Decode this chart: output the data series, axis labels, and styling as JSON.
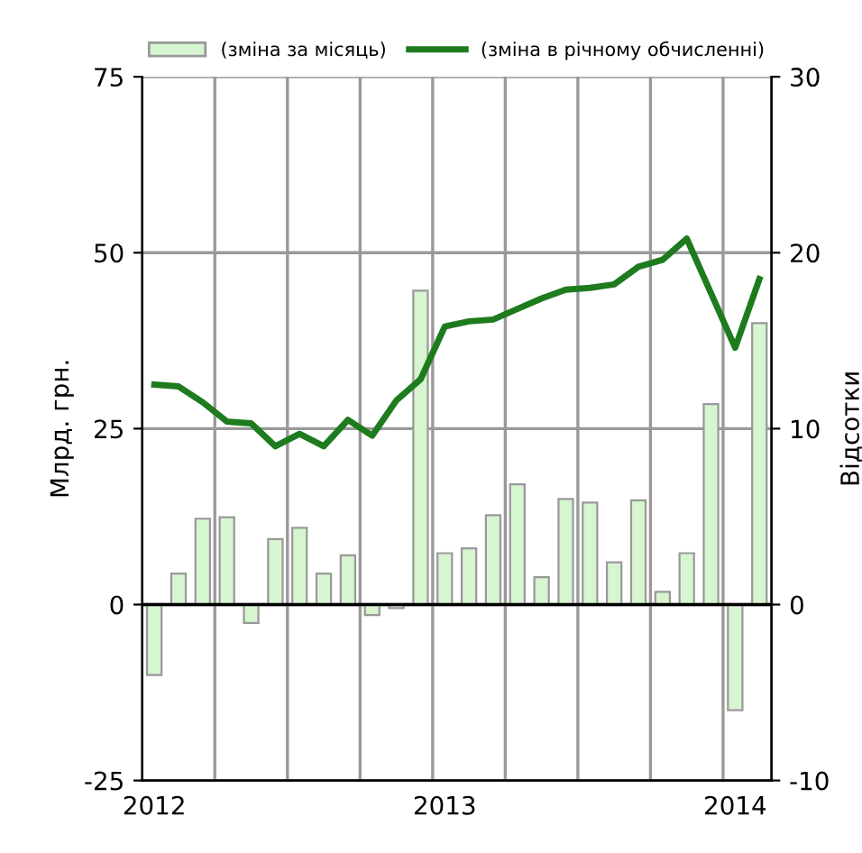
{
  "chart_data": {
    "type": "bar",
    "ylabel": "Млрд. грн.",
    "y2label": "Відсотки",
    "categories": [
      "2012",
      null,
      null,
      null,
      null,
      null,
      null,
      null,
      null,
      null,
      null,
      null,
      "2013",
      null,
      null,
      null,
      null,
      null,
      null,
      null,
      null,
      null,
      null,
      null,
      "2014",
      null
    ],
    "series": [
      {
        "name": "(зміна за місяць)",
        "color": "#d6f5d0",
        "values": [
          -10,
          4.4,
          12.2,
          12.4,
          -2.6,
          9.3,
          10.9,
          4.4,
          7.0,
          -1.5,
          -0.5,
          44.6,
          7.3,
          8.0,
          12.7,
          17.1,
          3.9,
          15.0,
          14.5,
          6.0,
          14.8,
          1.8,
          7.3,
          28.5,
          -15,
          40
        ]
      },
      {
        "name": "(зміна в річному обчисленні)",
        "type": "line",
        "axis": "y2",
        "color": "#1e7b1e",
        "values": [
          12.5,
          12.4,
          11.5,
          10.4,
          10.3,
          9.0,
          9.7,
          9.0,
          10.5,
          9.6,
          11.6,
          12.8,
          15.8,
          16.1,
          16.2,
          16.8,
          17.4,
          17.9,
          18.0,
          18.2,
          19.2,
          19.6,
          20.8,
          17.7,
          14.6,
          18.5
        ]
      }
    ],
    "ylim": [
      -25,
      75
    ],
    "yticks": [
      -25,
      0,
      25,
      50,
      75
    ],
    "y2lim": [
      -10,
      30
    ],
    "y2ticks": [
      -10,
      0,
      10,
      20,
      30
    ],
    "grid": true,
    "legend": "top"
  }
}
